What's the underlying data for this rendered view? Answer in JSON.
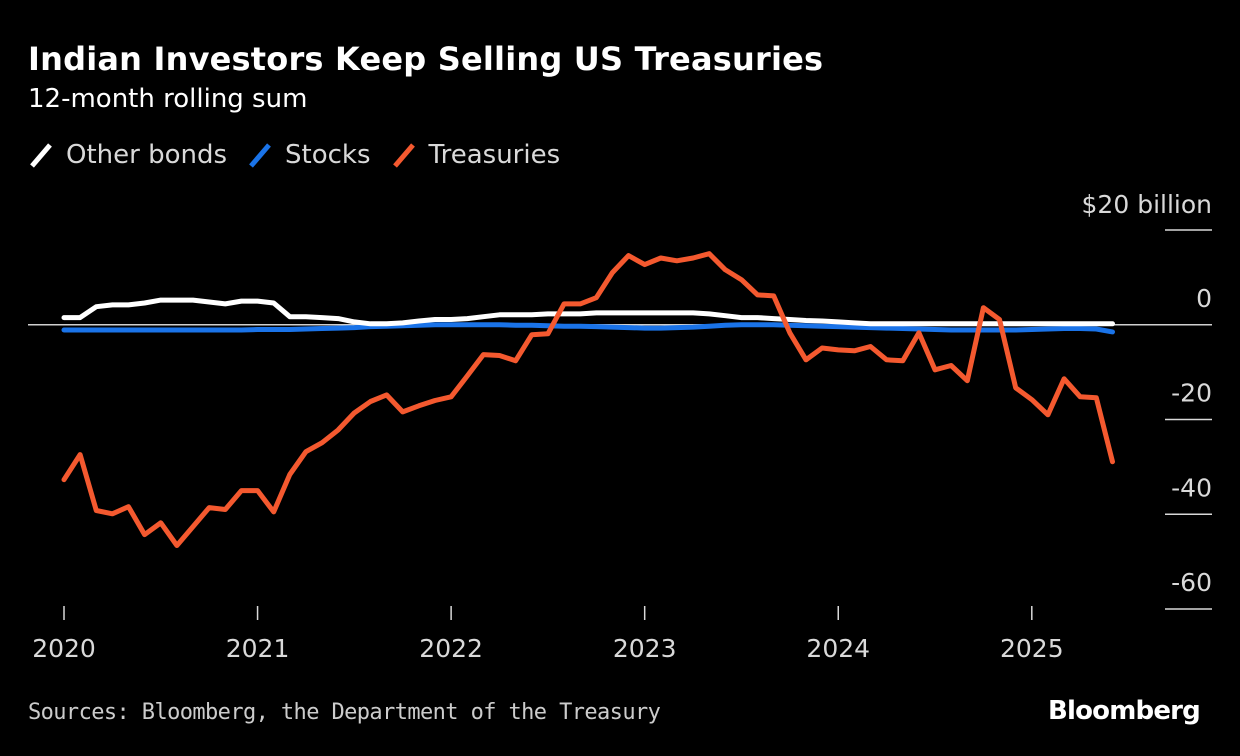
{
  "header": {
    "title": "Indian Investors Keep Selling US Treasuries",
    "subtitle": "12-month rolling sum"
  },
  "legend": [
    {
      "label": "Other bonds",
      "color": "#ffffff",
      "icon": "slash-line-icon"
    },
    {
      "label": "Stocks",
      "color": "#1a73e8",
      "icon": "slash-line-icon"
    },
    {
      "label": "Treasuries",
      "color": "#f4592f",
      "icon": "slash-line-icon"
    }
  ],
  "footer": {
    "source": "Sources: Bloomberg, the Department of the Treasury",
    "brand": "Bloomberg"
  },
  "chart_data": {
    "type": "line",
    "title": "Indian Investors Keep Selling US Treasuries",
    "subtitle": "12-month rolling sum",
    "xlabel": "",
    "ylabel": "$ billion",
    "unit_label": "$20 billion",
    "x_start": "2020-01",
    "x_frequency": "monthly",
    "x_ticks": [
      "2020",
      "2021",
      "2022",
      "2023",
      "2024",
      "2025"
    ],
    "y_ticks": [
      20,
      0,
      -20,
      -40,
      -60
    ],
    "y_tick_labels": [
      "$20 billion",
      "0",
      "-20",
      "-40",
      "-60"
    ],
    "ylim": [
      -60,
      20
    ],
    "grid": false,
    "legend_position": "top-left",
    "series": [
      {
        "name": "Other bonds",
        "color": "#ffffff",
        "values": [
          1.5,
          1.5,
          3.8,
          4.2,
          4.2,
          4.6,
          5.2,
          5.2,
          5.2,
          4.8,
          4.4,
          5.0,
          5.0,
          4.6,
          1.7,
          1.7,
          1.5,
          1.3,
          0.6,
          0.2,
          0.2,
          0.4,
          0.8,
          1.1,
          1.1,
          1.3,
          1.7,
          2.1,
          2.1,
          2.1,
          2.3,
          2.3,
          2.3,
          2.5,
          2.5,
          2.5,
          2.5,
          2.5,
          2.5,
          2.5,
          2.3,
          1.9,
          1.5,
          1.5,
          1.3,
          1.1,
          0.9,
          0.8,
          0.6,
          0.4,
          0.2,
          0.2,
          0.2,
          0.2,
          0.2,
          0.2,
          0.2,
          0.2,
          0.2,
          0.2,
          0.2,
          0.2,
          0.2,
          0.2,
          0.2,
          0.2
        ]
      },
      {
        "name": "Stocks",
        "color": "#1a73e8",
        "values": [
          -1.1,
          -1.1,
          -1.1,
          -1.1,
          -1.1,
          -1.1,
          -1.1,
          -1.1,
          -1.1,
          -1.1,
          -1.1,
          -1.1,
          -1.0,
          -1.0,
          -1.0,
          -0.9,
          -0.8,
          -0.7,
          -0.6,
          -0.4,
          -0.3,
          -0.2,
          -0.1,
          0.0,
          0.0,
          0.0,
          0.0,
          0.0,
          -0.1,
          -0.1,
          -0.2,
          -0.3,
          -0.3,
          -0.4,
          -0.5,
          -0.6,
          -0.7,
          -0.7,
          -0.6,
          -0.5,
          -0.3,
          -0.1,
          0.0,
          0.0,
          0.0,
          -0.1,
          -0.2,
          -0.3,
          -0.4,
          -0.5,
          -0.6,
          -0.7,
          -0.8,
          -0.9,
          -1.0,
          -1.1,
          -1.1,
          -1.1,
          -1.1,
          -1.1,
          -1.0,
          -0.9,
          -0.8,
          -0.8,
          -0.9,
          -1.5
        ]
      },
      {
        "name": "Treasuries",
        "color": "#f4592f",
        "values": [
          -32.7,
          -27.4,
          -39.2,
          -39.9,
          -38.4,
          -44.3,
          -41.8,
          -46.6,
          -42.6,
          -38.6,
          -39.0,
          -35.0,
          -35.0,
          -39.5,
          -31.6,
          -26.8,
          -24.9,
          -22.2,
          -18.6,
          -16.2,
          -14.8,
          -18.4,
          -17.1,
          -16.0,
          -15.2,
          -10.8,
          -6.3,
          -6.5,
          -7.6,
          -2.1,
          -1.9,
          4.4,
          4.4,
          5.7,
          11.0,
          14.6,
          12.7,
          14.1,
          13.5,
          14.1,
          15.0,
          11.6,
          9.5,
          6.3,
          6.1,
          -1.7,
          -7.4,
          -4.9,
          -5.3,
          -5.5,
          -4.6,
          -7.4,
          -7.6,
          -1.7,
          -9.5,
          -8.6,
          -11.8,
          3.6,
          1.1,
          -13.3,
          -15.8,
          -19.0,
          -11.4,
          -15.2,
          -15.4,
          -28.9
        ]
      }
    ]
  }
}
